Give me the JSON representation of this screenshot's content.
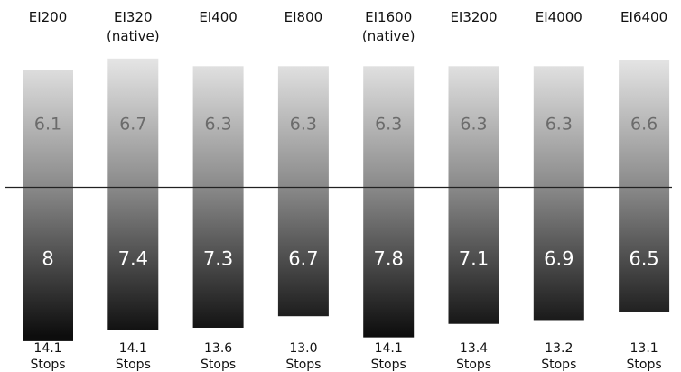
{
  "chart_data": {
    "type": "bar",
    "title": "",
    "categories": [
      {
        "label": "EI200",
        "note": ""
      },
      {
        "label": "EI320",
        "note": "(native)"
      },
      {
        "label": "EI400",
        "note": ""
      },
      {
        "label": "EI800",
        "note": ""
      },
      {
        "label": "EI1600",
        "note": "(native)"
      },
      {
        "label": "EI3200",
        "note": ""
      },
      {
        "label": "EI4000",
        "note": ""
      },
      {
        "label": "EI6400",
        "note": ""
      }
    ],
    "series": [
      {
        "values": [
          6.1,
          6.7,
          6.3,
          6.3,
          6.3,
          6.3,
          6.3,
          6.6
        ]
      },
      {
        "values": [
          8,
          7.4,
          7.3,
          6.7,
          7.8,
          7.1,
          6.9,
          6.5
        ]
      }
    ],
    "totals": [
      {
        "value": "14.1",
        "unit": "Stops"
      },
      {
        "value": "14.1",
        "unit": "Stops"
      },
      {
        "value": "13.6",
        "unit": "Stops"
      },
      {
        "value": "13.0",
        "unit": "Stops"
      },
      {
        "value": "14.1",
        "unit": "Stops"
      },
      {
        "value": "13.4",
        "unit": "Stops"
      },
      {
        "value": "13.2",
        "unit": "Stops"
      },
      {
        "value": "13.1",
        "unit": "Stops"
      }
    ],
    "colors": {
      "bar_top": "#e8e8e8",
      "bar_mid": "#8a8a8a",
      "bar_bottom": "#0d0d0d",
      "midline": "#222222"
    }
  }
}
